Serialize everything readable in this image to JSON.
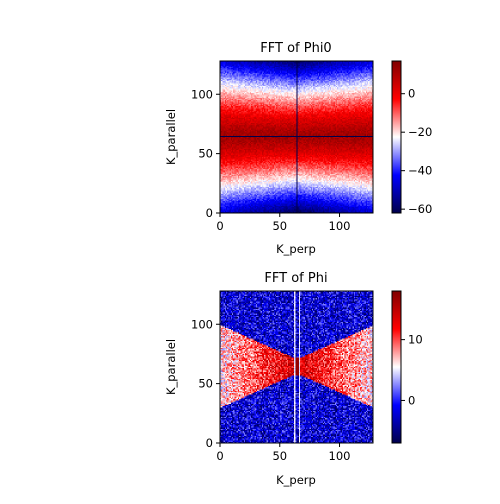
{
  "chart_data": [
    {
      "type": "heatmap",
      "title": "FFT of Phi0",
      "xlabel": "K_perp",
      "ylabel": "K_parallel",
      "xlim": [
        0,
        128
      ],
      "ylim": [
        0,
        128
      ],
      "xticks": [
        0,
        50,
        100
      ],
      "yticks": [
        0,
        50,
        100
      ],
      "colormap": "seismic",
      "colorbar": {
        "range": [
          -62,
          17
        ],
        "ticks": [
          0,
          -20,
          -40,
          -60
        ]
      },
      "pattern": "horizontal red band centered at K_parallel 64, fading to blue toward K_parallel 0 and 128; cross of dark lines at K_perp 64 and K_parallel 64"
    },
    {
      "type": "heatmap",
      "title": "FFT of Phi",
      "xlabel": "K_perp",
      "ylabel": "K_parallel",
      "xlim": [
        0,
        128
      ],
      "ylim": [
        0,
        128
      ],
      "xticks": [
        0,
        50,
        100
      ],
      "yticks": [
        0,
        50,
        100
      ],
      "colormap": "seismic",
      "colorbar": {
        "range": [
          -7,
          18
        ],
        "ticks": [
          10,
          0
        ]
      },
      "pattern": "bow-tie shaped red region centered at (64, 64), noisy blue background, vertical white stripe near K_perp 64"
    }
  ]
}
